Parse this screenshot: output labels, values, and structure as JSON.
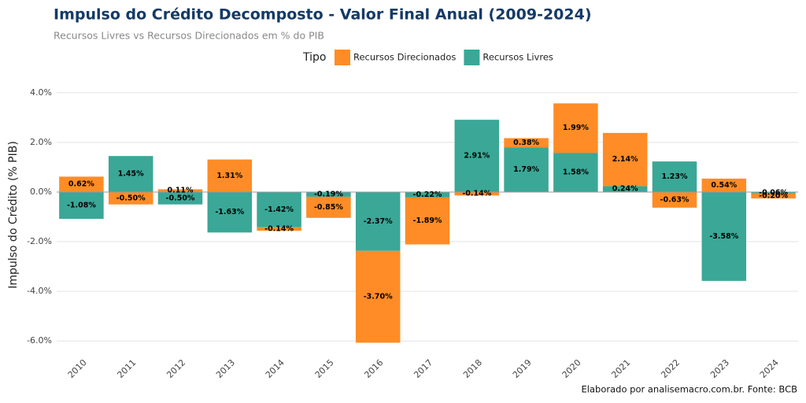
{
  "chart_data": {
    "type": "stacked_bar",
    "title": "Impulso do Crédito Decomposto - Valor Final Anual (2009-2024)",
    "subtitle": "Recursos Livres vs Recursos Direcionados em % do PIB",
    "legend_title": "Tipo",
    "y_label": "Impulso do Crédito (% PIB)",
    "caption": "Elaborado por analisemacro.com.br. Fonte: BCB",
    "categories": [
      "2010",
      "2011",
      "2012",
      "2013",
      "2014",
      "2015",
      "2016",
      "2017",
      "2018",
      "2019",
      "2020",
      "2021",
      "2022",
      "2023",
      "2024"
    ],
    "series": [
      {
        "name": "Recursos Direcionados",
        "color": "#ff8c26",
        "values": [
          0.62,
          -0.5,
          0.11,
          1.31,
          -0.14,
          -0.85,
          -3.7,
          -1.89,
          -0.14,
          0.38,
          1.99,
          2.14,
          -0.63,
          0.54,
          -0.2
        ],
        "value_labels": [
          "0.62%",
          "-0.50%",
          "0.11%",
          "1.31%",
          "-0.14%",
          "-0.85%",
          "-3.70%",
          "-1.89%",
          "-0.14%",
          "0.38%",
          "1.99%",
          "2.14%",
          "-0.63%",
          "0.54%",
          "-0.20%"
        ]
      },
      {
        "name": "Recursos Livres",
        "color": "#3aa797",
        "values": [
          -1.08,
          1.45,
          -0.5,
          -1.63,
          -1.42,
          -0.19,
          -2.37,
          -0.22,
          2.91,
          1.79,
          1.58,
          0.24,
          1.23,
          -3.58,
          -0.06
        ],
        "value_labels": [
          "-1.08%",
          "1.45%",
          "-0.50%",
          "-1.63%",
          "-1.42%",
          "-0.19%",
          "-2.37%",
          "-0.22%",
          "2.91%",
          "1.79%",
          "1.58%",
          "0.24%",
          "1.23%",
          "-3.58%",
          "-0.06%"
        ]
      }
    ],
    "ylim": [
      -6.5,
      4.5
    ],
    "yticks": [
      {
        "value": -6,
        "label": "-6.0%"
      },
      {
        "value": -4,
        "label": "-4.0%"
      },
      {
        "value": -2,
        "label": "-2.0%"
      },
      {
        "value": 0,
        "label": "0.0%"
      },
      {
        "value": 2,
        "label": "2.0%"
      },
      {
        "value": 4,
        "label": "4.0%"
      }
    ],
    "grid": true
  }
}
